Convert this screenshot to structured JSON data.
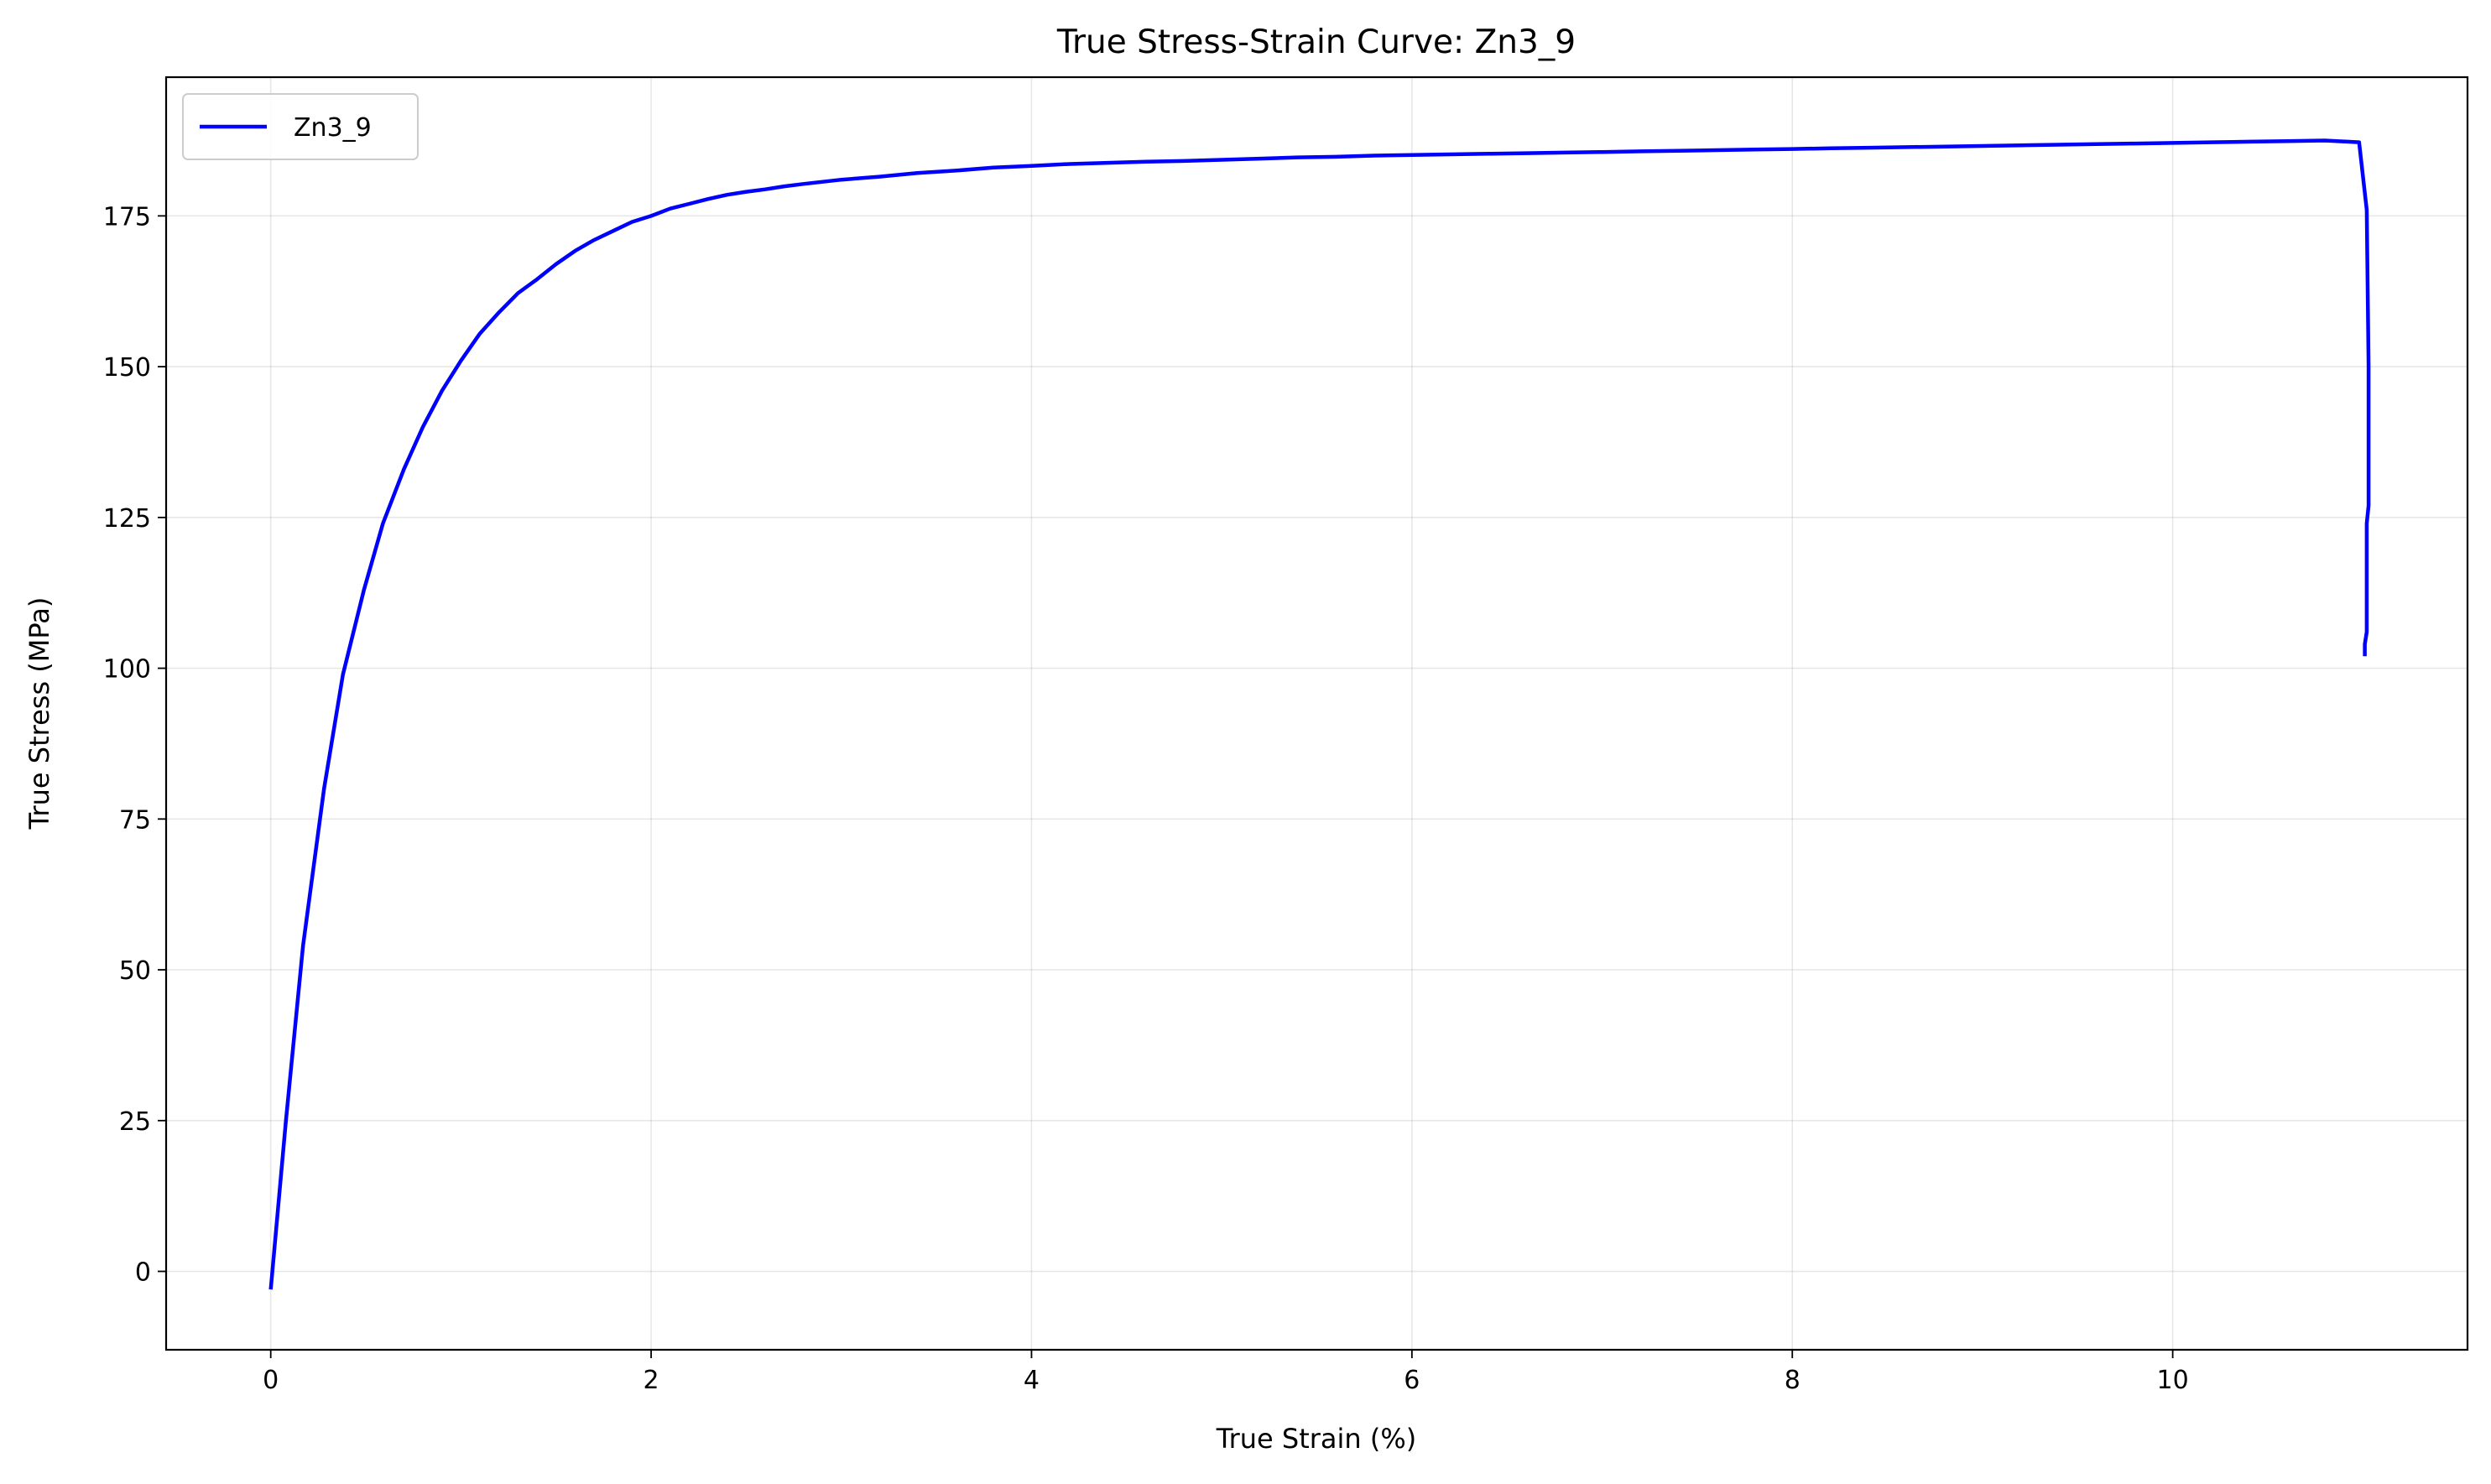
{
  "chart_data": {
    "type": "line",
    "title": "True Stress-Strain Curve: Zn3_9",
    "xlabel": "True Strain (%)",
    "ylabel": "True Stress (MPa)",
    "xlim": [
      -0.55,
      11.55
    ],
    "ylim": [
      -13,
      198
    ],
    "x_ticks": [
      0,
      2,
      4,
      6,
      8,
      10
    ],
    "x_tick_labels": [
      "0",
      "2",
      "4",
      "6",
      "8",
      "10"
    ],
    "y_ticks": [
      0,
      25,
      50,
      75,
      100,
      125,
      150,
      175
    ],
    "y_tick_labels": [
      "0",
      "25",
      "50",
      "75",
      "100",
      "125",
      "150",
      "175"
    ],
    "grid": true,
    "legend_position": "top-left",
    "series": [
      {
        "name": "Zn3_9",
        "color": "#0000ff",
        "x": [
          0.0,
          0.08,
          0.17,
          0.28,
          0.38,
          0.49,
          0.59,
          0.7,
          0.8,
          0.9,
          1.0,
          1.1,
          1.2,
          1.3,
          1.4,
          1.5,
          1.6,
          1.7,
          1.8,
          1.9,
          2.0,
          2.1,
          2.2,
          2.3,
          2.4,
          2.5,
          2.6,
          2.7,
          2.8,
          3.0,
          3.2,
          3.4,
          3.6,
          3.8,
          4.0,
          4.2,
          4.4,
          4.6,
          4.8,
          5.0,
          5.2,
          5.4,
          5.6,
          5.8,
          6.0,
          6.2,
          6.4,
          6.6,
          6.8,
          7.0,
          7.2,
          7.4,
          7.6,
          7.8,
          8.0,
          8.2,
          8.4,
          8.6,
          8.8,
          9.0,
          9.2,
          9.4,
          9.6,
          9.8,
          10.0,
          10.2,
          10.4,
          10.6,
          10.8,
          10.98,
          11.02,
          11.03,
          11.03,
          11.02,
          11.02,
          11.02,
          11.01,
          11.01
        ],
        "y": [
          -3,
          25,
          54,
          80,
          99,
          113,
          124,
          133,
          140,
          146,
          151,
          155.5,
          159,
          162.2,
          164.5,
          167,
          169.2,
          171,
          172.5,
          174,
          175,
          176.2,
          177,
          177.8,
          178.5,
          179,
          179.4,
          179.9,
          180.3,
          181,
          181.5,
          182.1,
          182.5,
          183,
          183.3,
          183.6,
          183.8,
          184,
          184.1,
          184.3,
          184.5,
          184.7,
          184.8,
          185,
          185.1,
          185.2,
          185.3,
          185.4,
          185.5,
          185.6,
          185.7,
          185.8,
          185.9,
          186,
          186.1,
          186.2,
          186.3,
          186.4,
          186.5,
          186.6,
          186.7,
          186.8,
          186.9,
          187,
          187.1,
          187.2,
          187.3,
          187.4,
          187.5,
          187.2,
          176,
          150,
          127,
          124,
          111,
          106,
          104,
          102
        ]
      }
    ]
  }
}
